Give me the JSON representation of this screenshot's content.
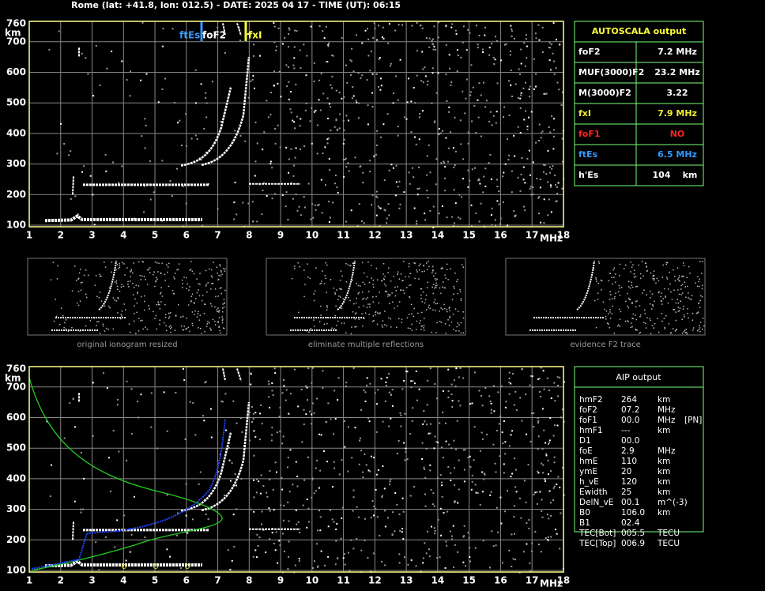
{
  "header": {
    "title": "Rome (lat: +41.8, lon: 012.5) - DATE: 2025 04 17 - TIME (UT): 06:15"
  },
  "top_plot": {
    "y_unit": "km",
    "x_unit": "MHz",
    "y_ticks": [
      "760",
      "700",
      "600",
      "500",
      "400",
      "300",
      "200",
      "100"
    ],
    "x_ticks": [
      "1",
      "2",
      "3",
      "4",
      "5",
      "6",
      "7",
      "8",
      "9",
      "10",
      "11",
      "12",
      "13",
      "14",
      "15",
      "16",
      "17",
      "18"
    ],
    "markers": [
      "ftEs",
      "foF2",
      "fxI"
    ]
  },
  "autoscala": {
    "title": "AUTOSCALA output",
    "rows": [
      [
        "foF2",
        "7.2 MHz"
      ],
      [
        "MUF(3000)F2",
        "23.2 MHz"
      ],
      [
        "M(3000)F2",
        "3.22"
      ],
      [
        "fxI",
        "7.9 MHz"
      ],
      [
        "foF1",
        "NO"
      ],
      [
        "ftEs",
        "6.5 MHz"
      ],
      [
        "h'Es",
        "104",
        "km"
      ]
    ]
  },
  "thumbnails": {
    "captions": [
      "original ionogram resized",
      "eliminate multiple reflections",
      "evidence F2 trace"
    ]
  },
  "bottom_plot": {
    "y_unit": "km",
    "x_unit": "MHz",
    "y_ticks": [
      "760",
      "700",
      "600",
      "500",
      "400",
      "300",
      "200",
      "100"
    ],
    "x_ticks": [
      "1",
      "2",
      "3",
      "4",
      "5",
      "6",
      "7",
      "8",
      "9",
      "10",
      "11",
      "12",
      "13",
      "14",
      "15",
      "16",
      "17",
      "18"
    ]
  },
  "aip": {
    "title": "AIP output",
    "rows": [
      [
        "hmF2",
        "264",
        "km"
      ],
      [
        "foF2",
        "07.2",
        "MHz"
      ],
      [
        "foF1",
        "00.0",
        "MHz",
        "[PN]"
      ],
      [
        "hmF1",
        "---",
        "km"
      ],
      [
        "D1",
        "00.0"
      ],
      [
        "foE",
        "2.9",
        "MHz"
      ],
      [
        "hmE",
        "110",
        "km"
      ],
      [
        "ymE",
        "20",
        "km"
      ],
      [
        "h_vE",
        "120",
        "km"
      ],
      [
        "Ewidth",
        "25",
        "km"
      ],
      [
        "DelN_vE",
        "00.1",
        "m^(-3)"
      ],
      [
        "B0",
        "106.0",
        "km"
      ],
      [
        "B1",
        "02.4"
      ],
      [
        "TEC[Bot]",
        "005.5",
        "TECU"
      ],
      [
        "TEC[Top]",
        "006.9",
        "TECU"
      ]
    ]
  }
}
